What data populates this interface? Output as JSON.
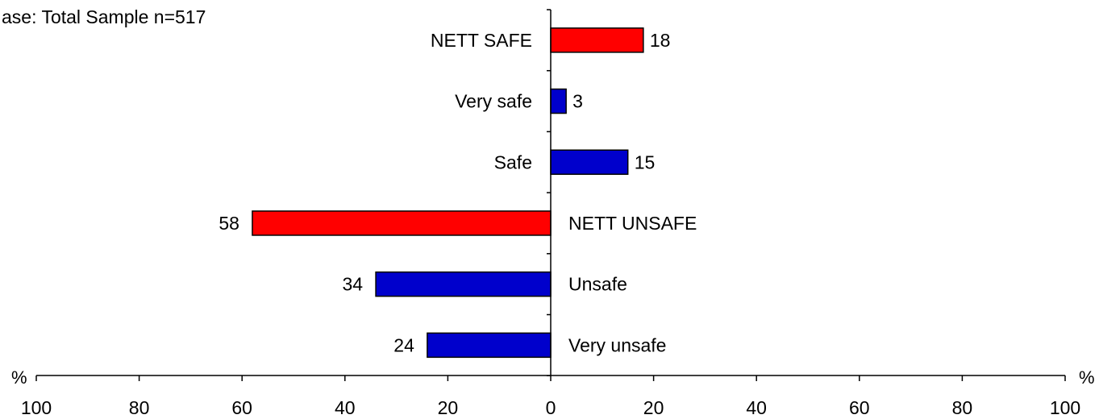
{
  "chart_data": {
    "type": "bar",
    "orientation": "horizontal-diverging",
    "base_note": "ase: Total Sample n=517",
    "x_unit_left": "%",
    "x_unit_right": "%",
    "xlim": [
      -100,
      100
    ],
    "x_tick_values": [
      -100,
      -80,
      -60,
      -40,
      -20,
      0,
      20,
      40,
      60,
      80,
      100
    ],
    "x_tick_labels": [
      "100",
      "80",
      "60",
      "40",
      "20",
      "0",
      "20",
      "40",
      "60",
      "80",
      "100"
    ],
    "grid": false,
    "legend": "none",
    "colors": {
      "nett": "#ff0000",
      "detail": "#0000cc"
    },
    "categories": [
      "NETT SAFE",
      "Very safe",
      "Safe",
      "NETT UNSAFE",
      "Unsafe",
      "Very unsafe"
    ],
    "values": [
      18,
      3,
      15,
      -58,
      -34,
      -24
    ],
    "value_labels": [
      "18",
      "3",
      "15",
      "58",
      "34",
      "24"
    ],
    "bar_kind": [
      "nett",
      "detail",
      "detail",
      "nett",
      "detail",
      "detail"
    ]
  }
}
